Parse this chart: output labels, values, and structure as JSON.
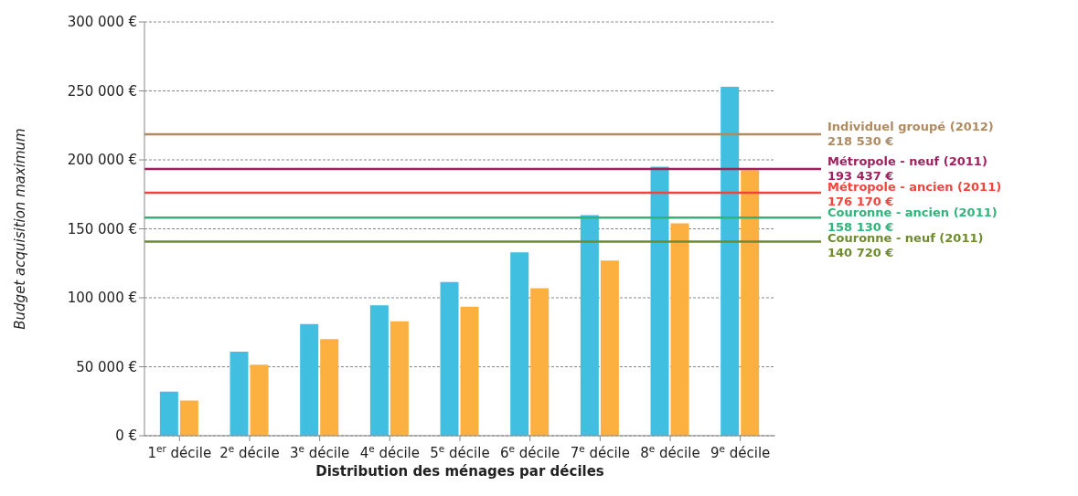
{
  "chart_data": {
    "type": "bar",
    "xlabel": "Distribution des ménages par déciles",
    "ylabel": "Budget acquisition maximum",
    "categories": [
      "1$^{er}$ décile",
      "2$^{e}$ décile",
      "3$^{e}$ décile",
      "4$^{e}$ décile",
      "5$^{e}$ décile",
      "6$^{e}$ décile",
      "7$^{e}$ décile",
      "8$^{e}$ décile",
      "9$^{e}$ décile"
    ],
    "series": [
      {
        "color": "#40bfe0",
        "values": [
          32000,
          61000,
          81000,
          94500,
          111500,
          133000,
          160000,
          195000,
          253000
        ]
      },
      {
        "color": "#fbb040",
        "values": [
          25500,
          51500,
          70000,
          83000,
          93500,
          107000,
          127000,
          154000,
          192500
        ]
      }
    ],
    "ylim": [
      0,
      300000
    ],
    "yticks": [
      {
        "value": 0,
        "label": "0 €"
      },
      {
        "value": 50000,
        "label": "50 000 €"
      },
      {
        "value": 100000,
        "label": "100 000 €"
      },
      {
        "value": 150000,
        "label": "150 000 €"
      },
      {
        "value": 200000,
        "label": "200 000 €"
      },
      {
        "value": 250000,
        "label": "250 000 €"
      },
      {
        "value": 300000,
        "label": "300 000 €"
      }
    ],
    "grid": "y",
    "legend": false,
    "ref_lines": [
      {
        "axis": "y",
        "value": 218530,
        "label": "Individuel groupé (2012)\n218 530 €",
        "color": "#b08a60"
      },
      {
        "axis": "y",
        "value": 193437,
        "label": "Métropole - neuf (2011)\n193 437 €",
        "color": "#a0205e"
      },
      {
        "axis": "y",
        "value": 176170,
        "label": "Métropole - ancien (2011)\n176 170 €",
        "color": "#f0443c"
      },
      {
        "axis": "y",
        "value": 158130,
        "label": "Couronne - ancien (2011)\n158 130 €",
        "color": "#2db57a"
      },
      {
        "axis": "y",
        "value": 140720,
        "label": "Couronne - neuf (2011)\n140 720 €",
        "color": "#6e8c2e"
      }
    ]
  }
}
